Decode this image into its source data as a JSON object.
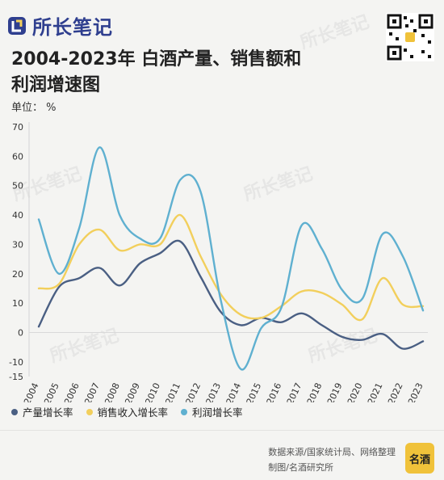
{
  "brand": {
    "name": "所长笔记"
  },
  "title": {
    "line1": "2004-2023年 白酒产量、销售额和",
    "line2": "利润增速图"
  },
  "unit_label": "单位： %",
  "source": {
    "line1": "数据来源/国家统计局、网络整理",
    "line2": "制图/名酒研究所"
  },
  "footer_logo_text": "名酒",
  "colors": {
    "production": "#4a5f83",
    "sales": "#f2cf5c",
    "profit": "#5fb0d0",
    "brand": "#2f3f8f"
  },
  "chart_data": {
    "type": "line",
    "categories": [
      "2004",
      "2005",
      "2006",
      "2007",
      "2008",
      "2009",
      "2010",
      "2011",
      "2012",
      "2013",
      "2014",
      "2015",
      "2016",
      "2017",
      "2018",
      "2019",
      "2020",
      "2021",
      "2022",
      "2023"
    ],
    "ylim": [
      -15,
      70
    ],
    "yticks": [
      -15,
      -10,
      0,
      10,
      20,
      30,
      40,
      50,
      60,
      70
    ],
    "grid": false,
    "legend_position": "bottom-left",
    "series": [
      {
        "name": "产量增长率",
        "color": "#4a5f83",
        "values": [
          2,
          15.5,
          18.5,
          22,
          16,
          23.5,
          27,
          31,
          19,
          7,
          2.5,
          5,
          3.5,
          6.5,
          2.5,
          -1.5,
          -2.5,
          -0.5,
          -5.5,
          -3
        ]
      },
      {
        "name": "销售收入增长率",
        "color": "#f2cf5c",
        "values": [
          15,
          16.5,
          30,
          35,
          28,
          30,
          30,
          40,
          26,
          13,
          6,
          5,
          9,
          14,
          13.5,
          9.5,
          4.5,
          18.5,
          9.5,
          9
        ]
      },
      {
        "name": "利润增长率",
        "color": "#5fb0d0",
        "values": [
          38.5,
          20,
          35.5,
          63,
          40,
          32,
          32,
          52,
          48,
          11,
          -12.5,
          1.5,
          8.5,
          36.5,
          28.5,
          14.5,
          11.5,
          33.5,
          26,
          7.5
        ]
      }
    ]
  }
}
